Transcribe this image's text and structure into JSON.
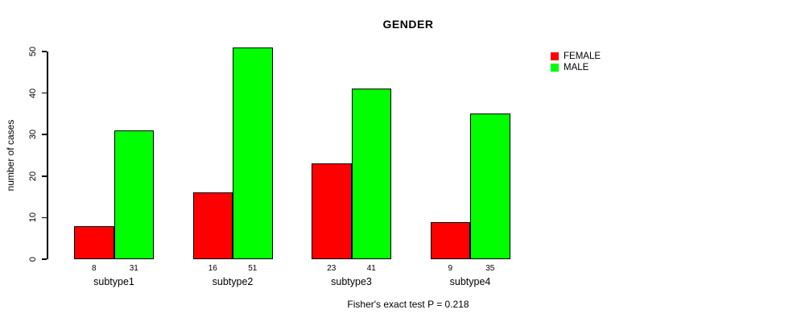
{
  "chart_data": {
    "type": "bar",
    "title": "GENDER",
    "categories": [
      "subtype1",
      "subtype2",
      "subtype3",
      "subtype4"
    ],
    "series": [
      {
        "name": "FEMALE",
        "color": "#ff0000",
        "values": [
          8,
          16,
          23,
          9
        ]
      },
      {
        "name": "MALE",
        "color": "#00ff00",
        "values": [
          31,
          51,
          41,
          35
        ]
      }
    ],
    "xlabel": "",
    "ylabel": "number of cases",
    "yticks": [
      0,
      10,
      20,
      30,
      40,
      50
    ],
    "ylim": [
      0,
      50
    ],
    "grid": false,
    "legend_position": "top-right",
    "bar_value_labels_shown": true,
    "annotation": "Fisher's exact test P = 0.218",
    "bar_border_color": "#000000",
    "axis_color": "#000000",
    "background_color": "#ffffff"
  }
}
